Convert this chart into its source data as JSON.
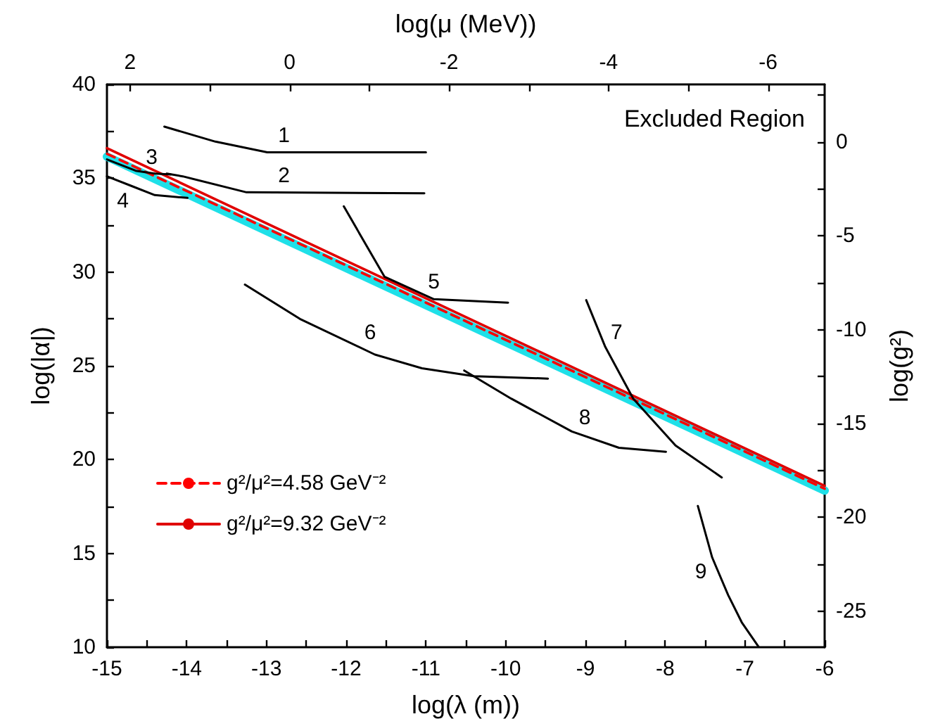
{
  "chart_data": {
    "type": "line",
    "xlabel": "log(λ (m))",
    "ylabel": "log(|α|)",
    "x2label": "log(μ (MeV))",
    "y2label": "log(g²)",
    "xlim": [
      -15,
      -6
    ],
    "xticks": [
      -15,
      {
        "value": -14.5,
        "label": null
      },
      -14,
      {
        "value": -13.5,
        "label": null
      },
      -13,
      {
        "value": -12.5,
        "label": null
      },
      -12,
      {
        "value": -11.5,
        "label": null
      },
      -11,
      {
        "value": -10.5,
        "label": null
      },
      -10,
      {
        "value": -9.5,
        "label": null
      },
      -9,
      {
        "value": -8.5,
        "label": null
      },
      -8,
      {
        "value": -7.5,
        "label": null
      },
      -7,
      {
        "value": -6.5,
        "label": null
      },
      -6
    ],
    "ylim": [
      10,
      40
    ],
    "yticks": [
      10,
      {
        "value": 12.5,
        "label": null
      },
      15,
      {
        "value": 17.5,
        "label": null
      },
      20,
      {
        "value": 22.5,
        "label": null
      },
      25,
      {
        "value": 27.5,
        "label": null
      },
      30,
      {
        "value": 32.5,
        "label": null
      },
      35,
      {
        "value": 37.5,
        "label": null
      },
      40
    ],
    "x2lim": [
      2.29,
      -6.71
    ],
    "x2ticks": [
      2,
      {
        "value": 1,
        "label": null
      },
      0,
      {
        "value": -1,
        "label": null
      },
      -2,
      {
        "value": -3,
        "label": null
      },
      -4,
      {
        "value": -5,
        "label": null
      },
      -6
    ],
    "y2lim": [
      -26.93,
      3.07
    ],
    "y2ticks": [
      {
        "value": 2.5,
        "label": null
      },
      0,
      {
        "value": -2.5,
        "label": null
      },
      -5,
      {
        "value": -7.5,
        "label": null
      },
      -10,
      {
        "value": -12.5,
        "label": null
      },
      -15,
      {
        "value": -17.5,
        "label": null
      },
      -20,
      {
        "value": -22.5,
        "label": null
      },
      -25
    ],
    "marker": "none",
    "legend": "bottom left",
    "series": [
      {
        "color": "#1fe0e8",
        "x": [
          -15,
          -6
        ],
        "values": [
          36.15,
          18.35
        ],
        "line_style": "solid"
      },
      {
        "name": "g²/μ²=4.58 GeV⁻²",
        "color": "#ff0000",
        "x": [
          -15,
          -6
        ],
        "values": [
          36.3,
          18.45
        ],
        "line_style": "dashed"
      },
      {
        "name": "g²/μ²=9.32 GeV⁻²",
        "color": "#e00000",
        "x": [
          -15,
          -6
        ],
        "values": [
          36.6,
          18.6
        ],
        "line_style": "solid"
      },
      {
        "color": "#000000",
        "x": [
          -14.28,
          -13.64,
          -12.99,
          -11.0
        ],
        "values": [
          37.75,
          36.95,
          36.38,
          36.38
        ],
        "line_style": "solid"
      },
      {
        "color": "#000000",
        "x": [
          -14.25,
          -14.05,
          -13.25,
          -11.02
        ],
        "values": [
          35.25,
          35.1,
          34.25,
          34.2
        ],
        "line_style": "solid"
      },
      {
        "color": "#000000",
        "x": [
          -15,
          -14.64,
          -14.4,
          -14.2
        ],
        "values": [
          36.0,
          35.4,
          35.25,
          35.2
        ],
        "line_style": "solid"
      },
      {
        "color": "#000000",
        "x": [
          -15,
          -14.7,
          -14.4,
          -13.99
        ],
        "values": [
          35.1,
          34.6,
          34.1,
          33.95
        ],
        "line_style": "solid"
      },
      {
        "color": "#000000",
        "x": [
          -12.03,
          -11.52,
          -10.9,
          -9.97
        ],
        "values": [
          33.5,
          29.75,
          28.55,
          28.37
        ],
        "line_style": "solid"
      },
      {
        "color": "#000000",
        "x": [
          -13.27,
          -12.58,
          -11.64,
          -11.05,
          -10.4,
          -9.47
        ],
        "values": [
          29.33,
          27.5,
          25.6,
          24.87,
          24.45,
          24.32
        ],
        "line_style": "solid"
      },
      {
        "color": "#000000",
        "x": [
          -8.99,
          -8.75,
          -8.4,
          -7.87,
          -7.29
        ],
        "values": [
          28.5,
          26.0,
          23.25,
          20.75,
          19.05
        ],
        "line_style": "solid"
      },
      {
        "color": "#000000",
        "x": [
          -10.52,
          -9.93,
          -9.17,
          -8.58,
          -7.99
        ],
        "values": [
          24.75,
          23.25,
          21.5,
          20.63,
          20.42
        ],
        "line_style": "solid"
      },
      {
        "color": "#000000",
        "x": [
          -7.59,
          -7.41,
          -7.21,
          -7.04,
          -6.83
        ],
        "values": [
          17.53,
          14.78,
          12.78,
          11.33,
          10.03
        ],
        "line_style": "solid"
      }
    ],
    "annotations": [
      "Excluded Region",
      {
        "text": "1",
        "x": -12.78,
        "y": 36.38
      },
      {
        "text": "2",
        "x": -12.78,
        "y": 34.24
      },
      {
        "text": "3",
        "x": -14.58,
        "y": 35.36
      },
      {
        "text": "4",
        "x": -14.66,
        "y": 34.53
      },
      {
        "text": "5",
        "x": -10.9,
        "y": 28.55
      },
      {
        "text": "6",
        "x": -11.84,
        "y": 26.0
      },
      {
        "text": "7",
        "x": -8.75,
        "y": 26.0
      },
      {
        "text": "8",
        "x": -9.15,
        "y": 21.47
      },
      {
        "text": "9",
        "x": -7.41,
        "y": 14.78
      }
    ]
  }
}
